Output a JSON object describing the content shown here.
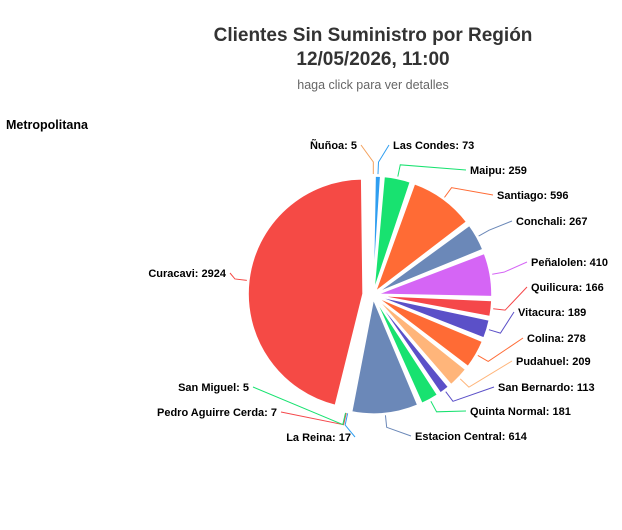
{
  "chart_data": {
    "type": "pie",
    "title_line1": "Clientes Sin Suministro por Región",
    "title_line2": "12/05/2026, 11:00",
    "subtitle": "haga click para ver detalles",
    "region": "Metropolitana",
    "slices": [
      {
        "name": "Ñuñoa",
        "value": 5,
        "color": "#f4a15c"
      },
      {
        "name": "Las Condes",
        "value": 73,
        "color": "#2f9ef0"
      },
      {
        "name": "Maipu",
        "value": 259,
        "color": "#18e270"
      },
      {
        "name": "Santiago",
        "value": 596,
        "color": "#ff6b35"
      },
      {
        "name": "Conchali",
        "value": 267,
        "color": "#6b88b8"
      },
      {
        "name": "Peñalolen",
        "value": 410,
        "color": "#d565f5"
      },
      {
        "name": "Quilicura",
        "value": 166,
        "color": "#f5474a"
      },
      {
        "name": "Vitacura",
        "value": 189,
        "color": "#5b50c8"
      },
      {
        "name": "Colina",
        "value": 278,
        "color": "#ff6b35"
      },
      {
        "name": "Pudahuel",
        "value": 209,
        "color": "#ffb57a"
      },
      {
        "name": "San Bernardo",
        "value": 113,
        "color": "#5b50c8"
      },
      {
        "name": "Quinta Normal",
        "value": 181,
        "color": "#18e270"
      },
      {
        "name": "Estacion Central",
        "value": 614,
        "color": "#6b88b8"
      },
      {
        "name": "La Reina",
        "value": 17,
        "color": "#2f9ef0"
      },
      {
        "name": "Pedro Aguirre Cerda",
        "value": 7,
        "color": "#f5474a"
      },
      {
        "name": "San Miguel",
        "value": 5,
        "color": "#18e270"
      },
      {
        "name": "Curacavi",
        "value": 2924,
        "color": "#f54a45"
      }
    ]
  }
}
